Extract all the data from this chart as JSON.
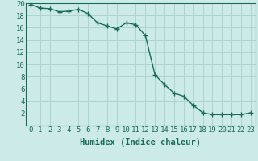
{
  "x": [
    0,
    1,
    2,
    3,
    4,
    5,
    6,
    7,
    8,
    9,
    10,
    11,
    12,
    13,
    14,
    15,
    16,
    17,
    18,
    19,
    20,
    21,
    22,
    23
  ],
  "y": [
    19.8,
    19.2,
    19.1,
    18.6,
    18.7,
    19.0,
    18.3,
    16.8,
    16.3,
    15.8,
    16.8,
    16.5,
    14.7,
    8.3,
    6.7,
    5.3,
    4.8,
    3.3,
    2.1,
    1.8,
    1.8,
    1.8,
    1.8,
    2.1
  ],
  "line_color": "#1a6b5a",
  "marker": "+",
  "bg_color": "#cceae7",
  "grid_color": "#aacfcc",
  "xlabel": "Humidex (Indice chaleur)",
  "ylim": [
    0,
    20
  ],
  "xlim_min": -0.5,
  "xlim_max": 23.5,
  "yticks": [
    2,
    4,
    6,
    8,
    10,
    12,
    14,
    16,
    18,
    20
  ],
  "xticks": [
    0,
    1,
    2,
    3,
    4,
    5,
    6,
    7,
    8,
    9,
    10,
    11,
    12,
    13,
    14,
    15,
    16,
    17,
    18,
    19,
    20,
    21,
    22,
    23
  ],
  "xlabel_fontsize": 7.5,
  "tick_fontsize": 6.5,
  "line_width": 1.0,
  "marker_size": 4
}
